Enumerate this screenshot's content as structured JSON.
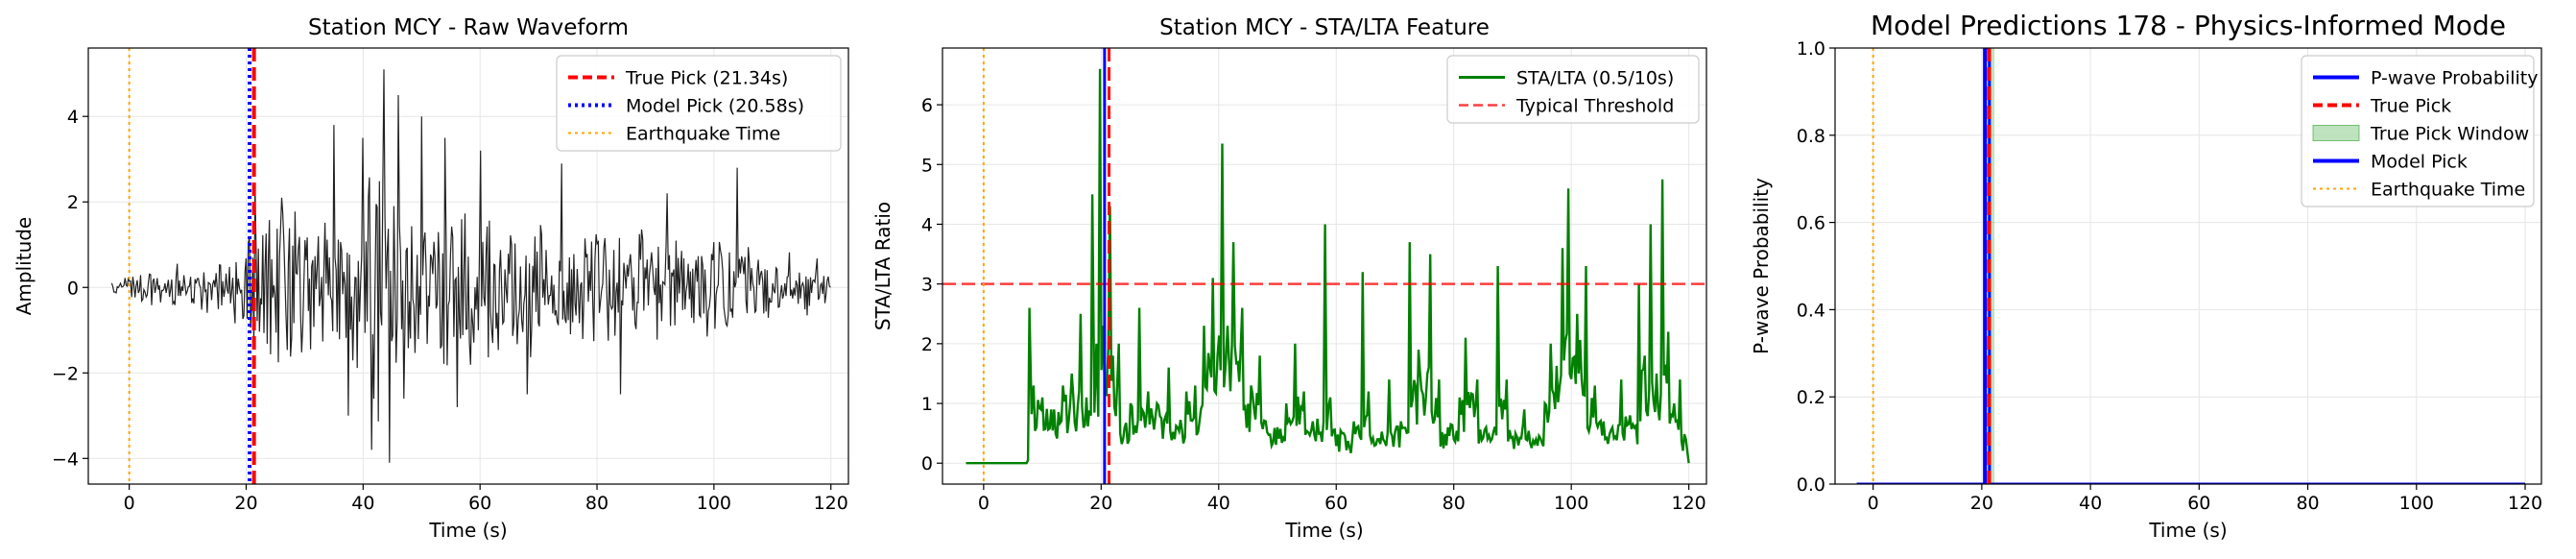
{
  "figure": {
    "background": "#ffffff",
    "axis_color": "#000000",
    "grid_color": "#e6e6e6"
  },
  "chart_data": [
    {
      "type": "line",
      "title": "Station MCY - Raw Waveform",
      "xlabel": "Time (s)",
      "ylabel": "Amplitude",
      "xlim": [
        -7,
        123
      ],
      "ylim": [
        -4.6,
        5.6
      ],
      "xticks": [
        0,
        20,
        40,
        60,
        80,
        100,
        120
      ],
      "yticks": [
        -4,
        -2,
        0,
        2,
        4
      ],
      "grid": true,
      "legend": "upper right",
      "series": [
        {
          "kind": "waveform",
          "color": "#222222",
          "envelope": [
            [
              -3,
              0.1
            ],
            [
              2,
              0.5
            ],
            [
              10,
              0.6
            ],
            [
              17,
              0.8
            ],
            [
              19,
              1.2
            ],
            [
              21,
              1.8
            ],
            [
              23,
              2.0
            ],
            [
              30,
              1.9
            ],
            [
              36,
              2.3
            ],
            [
              40,
              3.0
            ],
            [
              43,
              3.6
            ],
            [
              46,
              3.0
            ],
            [
              50,
              2.5
            ],
            [
              60,
              2.2
            ],
            [
              70,
              1.8
            ],
            [
              80,
              1.7
            ],
            [
              90,
              1.5
            ],
            [
              100,
              1.4
            ],
            [
              110,
              1.0
            ],
            [
              118,
              0.8
            ],
            [
              120,
              0.2
            ]
          ],
          "annotated_extremes": [
            {
              "x": 21.5,
              "y": 2.4
            },
            {
              "x": 26.0,
              "y": 2.1
            },
            {
              "x": 35.0,
              "y": 3.8
            },
            {
              "x": 37.5,
              "y": -3.0
            },
            {
              "x": 40.0,
              "y": 3.5
            },
            {
              "x": 41.5,
              "y": -3.8
            },
            {
              "x": 43.5,
              "y": 5.1
            },
            {
              "x": 44.5,
              "y": -4.1
            },
            {
              "x": 46.0,
              "y": 4.5
            },
            {
              "x": 47.0,
              "y": -2.6
            },
            {
              "x": 50.0,
              "y": 4.0
            },
            {
              "x": 54.0,
              "y": 3.5
            },
            {
              "x": 56.0,
              "y": -2.8
            },
            {
              "x": 60.0,
              "y": 3.2
            },
            {
              "x": 68.0,
              "y": -2.5
            },
            {
              "x": 74.0,
              "y": 2.9
            },
            {
              "x": 84.0,
              "y": -2.5
            },
            {
              "x": 92.0,
              "y": 2.2
            },
            {
              "x": 104.0,
              "y": 2.8
            }
          ]
        }
      ],
      "vlines": [
        {
          "x": 21.34,
          "label": "True Pick (21.34s)",
          "color": "#ff0000",
          "style": "dashed",
          "width": 4
        },
        {
          "x": 20.58,
          "label": "Model Pick (20.58s)",
          "color": "#0000ff",
          "style": "dotted",
          "width": 4
        },
        {
          "x": 0,
          "label": "Earthquake Time",
          "color": "#ffa500",
          "style": "dotted",
          "width": 2
        }
      ]
    },
    {
      "type": "line",
      "title": "Station MCY - STA/LTA Feature",
      "xlabel": "Time (s)",
      "ylabel": "STA/LTA Ratio",
      "xlim": [
        -7,
        123
      ],
      "ylim": [
        -0.35,
        6.95
      ],
      "xticks": [
        0,
        20,
        40,
        60,
        80,
        100,
        120
      ],
      "yticks": [
        0,
        1,
        2,
        3,
        4,
        5,
        6
      ],
      "grid": true,
      "legend": "upper right",
      "series": [
        {
          "name": "STA/LTA (0.5/10s)",
          "color": "#008000",
          "baseline": [
            [
              -3,
              0.0
            ],
            [
              7.3,
              0.0
            ]
          ],
          "peaks": [
            [
              7.8,
              2.6
            ],
            [
              8.5,
              1.3
            ],
            [
              10,
              1.1
            ],
            [
              12,
              0.9
            ],
            [
              13.5,
              1.3
            ],
            [
              15,
              1.5
            ],
            [
              16.5,
              2.5
            ],
            [
              17.5,
              1.1
            ],
            [
              18.5,
              4.5
            ],
            [
              19.2,
              2.0
            ],
            [
              19.8,
              6.6
            ],
            [
              20.3,
              2.3
            ],
            [
              21.5,
              4.3
            ],
            [
              22,
              1.8
            ],
            [
              23,
              2.0
            ],
            [
              24,
              0.6
            ],
            [
              25,
              1.0
            ],
            [
              26.5,
              2.6
            ],
            [
              28,
              1.2
            ],
            [
              29.5,
              1.0
            ],
            [
              31.5,
              1.6
            ],
            [
              33,
              0.6
            ],
            [
              34.5,
              1.2
            ],
            [
              36,
              1.3
            ],
            [
              37.5,
              2.3
            ],
            [
              39,
              3.1
            ],
            [
              40.6,
              5.35
            ],
            [
              41.5,
              2.3
            ],
            [
              42.5,
              3.7
            ],
            [
              44,
              2.6
            ],
            [
              45.5,
              1.3
            ],
            [
              47,
              1.8
            ],
            [
              48,
              0.7
            ],
            [
              50,
              0.6
            ],
            [
              51.5,
              1.0
            ],
            [
              53,
              2.0
            ],
            [
              54.5,
              1.2
            ],
            [
              56,
              0.7
            ],
            [
              58.1,
              4.0
            ],
            [
              59,
              1.1
            ],
            [
              61,
              0.5
            ],
            [
              63,
              0.7
            ],
            [
              64.5,
              3.2
            ],
            [
              65.5,
              1.2
            ],
            [
              67,
              0.4
            ],
            [
              69,
              1.4
            ],
            [
              71,
              0.7
            ],
            [
              72.5,
              3.7
            ],
            [
              74,
              1.9
            ],
            [
              76,
              3.5
            ],
            [
              77.5,
              1.4
            ],
            [
              79,
              0.6
            ],
            [
              81,
              1.1
            ],
            [
              82,
              2.1
            ],
            [
              84,
              1.4
            ],
            [
              85.5,
              0.6
            ],
            [
              87.5,
              3.3
            ],
            [
              89,
              1.4
            ],
            [
              90.5,
              0.5
            ],
            [
              92,
              0.9
            ],
            [
              94,
              0.4
            ],
            [
              95.5,
              1.0
            ],
            [
              96.5,
              2.0
            ],
            [
              98.5,
              3.6
            ],
            [
              99.5,
              4.6
            ],
            [
              101,
              2.5
            ],
            [
              102.5,
              3.3
            ],
            [
              104,
              1.3
            ],
            [
              105.5,
              0.7
            ],
            [
              107,
              0.6
            ],
            [
              108.5,
              1.4
            ],
            [
              110,
              0.8
            ],
            [
              111.5,
              3.0
            ],
            [
              112.5,
              1.8
            ],
            [
              113.5,
              4.0
            ],
            [
              114.5,
              1.5
            ],
            [
              115.5,
              4.75
            ],
            [
              116.5,
              2.2
            ],
            [
              117.5,
              1.0
            ],
            [
              118.5,
              1.4
            ],
            [
              119.5,
              0.4
            ],
            [
              120,
              0.0
            ]
          ]
        }
      ],
      "hlines": [
        {
          "y": 3,
          "label": "Typical Threshold",
          "color": "#ff0000",
          "style": "dashed",
          "alpha": 0.75
        }
      ],
      "vlines": [
        {
          "x": 0,
          "color": "#ffa500",
          "style": "dotted",
          "width": 2
        },
        {
          "x": 20.58,
          "color": "#0000ff",
          "style": "solid",
          "width": 3
        },
        {
          "x": 21.34,
          "color": "#ff0000",
          "style": "dashed",
          "width": 3
        }
      ]
    },
    {
      "type": "line",
      "title": "Model Predictions 178 - Physics-Informed Mode",
      "xlabel": "Time (s)",
      "ylabel": "P-wave Probability",
      "xlim": [
        -7,
        123
      ],
      "ylim": [
        0,
        1
      ],
      "xticks": [
        0,
        20,
        40,
        60,
        80,
        100,
        120
      ],
      "yticks": [
        0.0,
        0.2,
        0.4,
        0.6,
        0.8,
        1.0
      ],
      "grid": true,
      "legend": "upper right",
      "series": [
        {
          "name": "P-wave Probability",
          "color": "#0000ff",
          "x": [
            -3,
            20.58,
            20.6,
            21.4,
            21.42,
            120
          ],
          "y": [
            0,
            0,
            1,
            1,
            0,
            0
          ]
        }
      ],
      "spans": [
        {
          "x0": 20.34,
          "x1": 22.34,
          "label": "True Pick Window",
          "color": "#2ca02c",
          "alpha": 0.3
        }
      ],
      "vlines": [
        {
          "x": 21.34,
          "label": "True Pick",
          "color": "#ff0000",
          "style": "dashed",
          "width": 4
        },
        {
          "x": 20.58,
          "label": "Model Pick",
          "color": "#0000ff",
          "style": "solid",
          "width": 4
        },
        {
          "x": 0,
          "label": "Earthquake Time",
          "color": "#ffa500",
          "style": "dotted",
          "width": 2
        }
      ]
    }
  ]
}
